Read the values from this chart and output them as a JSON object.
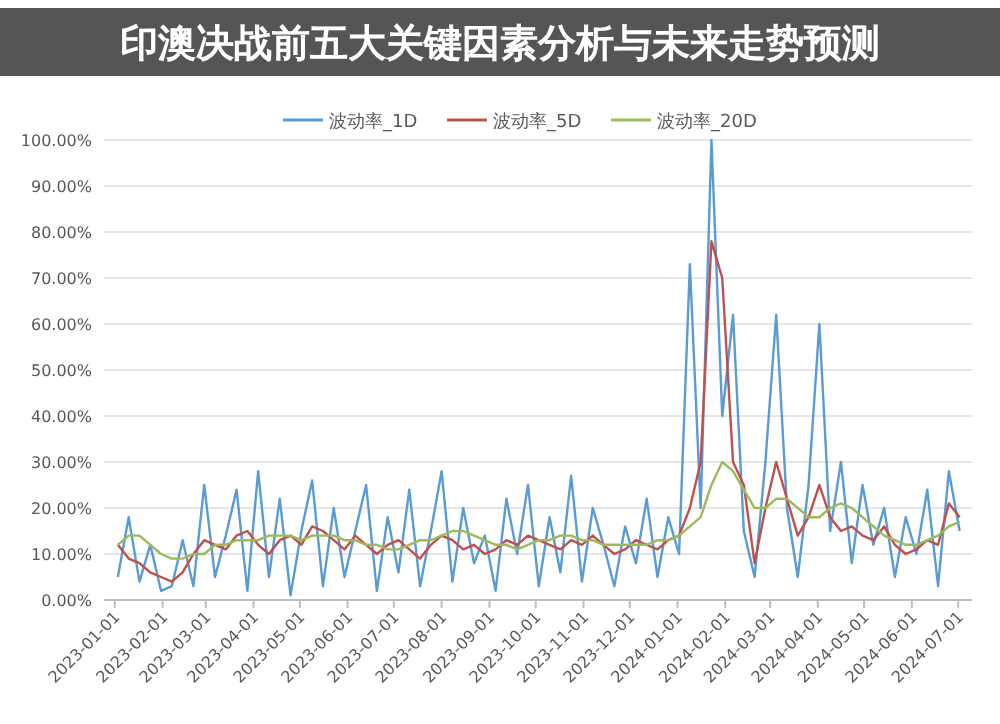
{
  "chart_data": {
    "type": "line",
    "title": "印澳决战前五大关键因素分析与未来走势预测",
    "x": [
      "2023-01-03",
      "2023-01-10",
      "2023-01-17",
      "2023-01-24",
      "2023-01-31",
      "2023-02-07",
      "2023-02-14",
      "2023-02-21",
      "2023-02-28",
      "2023-03-07",
      "2023-03-14",
      "2023-03-21",
      "2023-03-28",
      "2023-04-04",
      "2023-04-11",
      "2023-04-18",
      "2023-04-25",
      "2023-05-02",
      "2023-05-09",
      "2023-05-16",
      "2023-05-23",
      "2023-05-30",
      "2023-06-06",
      "2023-06-13",
      "2023-06-20",
      "2023-06-27",
      "2023-07-04",
      "2023-07-11",
      "2023-07-18",
      "2023-07-25",
      "2023-08-01",
      "2023-08-08",
      "2023-08-15",
      "2023-08-22",
      "2023-08-29",
      "2023-09-05",
      "2023-09-12",
      "2023-09-19",
      "2023-09-26",
      "2023-10-03",
      "2023-10-10",
      "2023-10-17",
      "2023-10-24",
      "2023-10-31",
      "2023-11-07",
      "2023-11-14",
      "2023-11-21",
      "2023-11-28",
      "2023-12-05",
      "2023-12-12",
      "2023-12-19",
      "2023-12-26",
      "2024-01-02",
      "2024-01-09",
      "2024-01-16",
      "2024-01-23",
      "2024-01-30",
      "2024-02-06",
      "2024-02-13",
      "2024-02-20",
      "2024-02-27",
      "2024-03-05",
      "2024-03-12",
      "2024-03-19",
      "2024-03-26",
      "2024-04-02",
      "2024-04-09",
      "2024-04-16",
      "2024-04-23",
      "2024-04-30",
      "2024-05-07",
      "2024-05-14",
      "2024-05-21",
      "2024-05-28",
      "2024-06-04",
      "2024-06-11",
      "2024-06-18",
      "2024-06-25",
      "2024-07-02"
    ],
    "series": [
      {
        "name": "波动率_1D",
        "color": "#5b9bd5",
        "values": [
          5,
          18,
          4,
          12,
          2,
          3,
          13,
          3,
          25,
          5,
          14,
          24,
          2,
          28,
          5,
          22,
          1,
          15,
          26,
          3,
          20,
          5,
          15,
          25,
          2,
          18,
          6,
          24,
          3,
          15,
          28,
          4,
          20,
          8,
          14,
          2,
          22,
          10,
          25,
          3,
          18,
          6,
          27,
          4,
          20,
          12,
          3,
          16,
          8,
          22,
          5,
          18,
          10,
          73,
          20,
          100,
          40,
          62,
          15,
          5,
          30,
          62,
          20,
          5,
          25,
          60,
          15,
          30,
          8,
          25,
          12,
          20,
          5,
          18,
          10,
          24,
          3,
          28,
          15
        ]
      },
      {
        "name": "波动率_5D",
        "color": "#c0504d",
        "values": [
          12,
          9,
          8,
          6,
          5,
          4,
          6,
          10,
          13,
          12,
          11,
          14,
          15,
          12,
          10,
          13,
          14,
          12,
          16,
          15,
          13,
          11,
          14,
          12,
          10,
          12,
          13,
          11,
          9,
          12,
          14,
          13,
          11,
          12,
          10,
          11,
          13,
          12,
          14,
          13,
          12,
          11,
          13,
          12,
          14,
          12,
          10,
          11,
          13,
          12,
          11,
          13,
          14,
          20,
          30,
          78,
          70,
          30,
          25,
          8,
          20,
          30,
          22,
          14,
          18,
          25,
          18,
          15,
          16,
          14,
          13,
          16,
          12,
          10,
          11,
          13,
          12,
          21,
          18
        ]
      },
      {
        "name": "波动率_20D",
        "color": "#9bbb59",
        "values": [
          12,
          14,
          14,
          12,
          10,
          9,
          9,
          10,
          10,
          12,
          12,
          13,
          13,
          13,
          14,
          14,
          14,
          13,
          14,
          14,
          14,
          13,
          13,
          12,
          12,
          11,
          11,
          12,
          13,
          13,
          14,
          15,
          15,
          14,
          13,
          12,
          12,
          11,
          12,
          13,
          13,
          14,
          14,
          13,
          13,
          12,
          12,
          12,
          12,
          12,
          13,
          13,
          14,
          16,
          18,
          25,
          30,
          28,
          24,
          20,
          20,
          22,
          22,
          20,
          18,
          18,
          20,
          21,
          20,
          18,
          16,
          14,
          13,
          12,
          12,
          13,
          14,
          16,
          17
        ]
      }
    ],
    "xlim": [
      "2022-12-25",
      "2024-07-10"
    ],
    "xticks": [
      {
        "value": "2023-01-01",
        "label": "2023-01-01"
      },
      {
        "value": "2023-02-01",
        "label": "2023-02-01"
      },
      {
        "value": "2023-03-01",
        "label": "2023-03-01"
      },
      {
        "value": "2023-04-01",
        "label": "2023-04-01"
      },
      {
        "value": "2023-05-01",
        "label": "2023-05-01"
      },
      {
        "value": "2023-06-01",
        "label": "2023-06-01"
      },
      {
        "value": "2023-07-01",
        "label": "2023-07-01"
      },
      {
        "value": "2023-08-01",
        "label": "2023-08-01"
      },
      {
        "value": "2023-09-01",
        "label": "2023-09-01"
      },
      {
        "value": "2023-10-01",
        "label": "2023-10-01"
      },
      {
        "value": "2023-11-01",
        "label": "2023-11-01"
      },
      {
        "value": "2023-12-01",
        "label": "2023-12-01"
      },
      {
        "value": "2024-01-01",
        "label": "2024-01-01"
      },
      {
        "value": "2024-02-01",
        "label": "2024-02-01"
      },
      {
        "value": "2024-03-01",
        "label": "2024-03-01"
      },
      {
        "value": "2024-04-01",
        "label": "2024-04-01"
      },
      {
        "value": "2024-05-01",
        "label": "2024-05-01"
      },
      {
        "value": "2024-06-01",
        "label": "2024-06-01"
      },
      {
        "value": "2024-07-01",
        "label": "2024-07-01"
      }
    ],
    "ylim": [
      0,
      100
    ],
    "yticks": [
      {
        "value": 0,
        "label": "0.00%"
      },
      {
        "value": 10,
        "label": "10.00%"
      },
      {
        "value": 20,
        "label": "20.00%"
      },
      {
        "value": 30,
        "label": "30.00%"
      },
      {
        "value": 40,
        "label": "40.00%"
      },
      {
        "value": 50,
        "label": "50.00%"
      },
      {
        "value": 60,
        "label": "60.00%"
      },
      {
        "value": 70,
        "label": "70.00%"
      },
      {
        "value": 80,
        "label": "80.00%"
      },
      {
        "value": 90,
        "label": "90.00%"
      },
      {
        "value": 100,
        "label": "100.00%"
      }
    ],
    "grid": "y",
    "legend": "top",
    "marker": "none",
    "line_style": "solid"
  }
}
